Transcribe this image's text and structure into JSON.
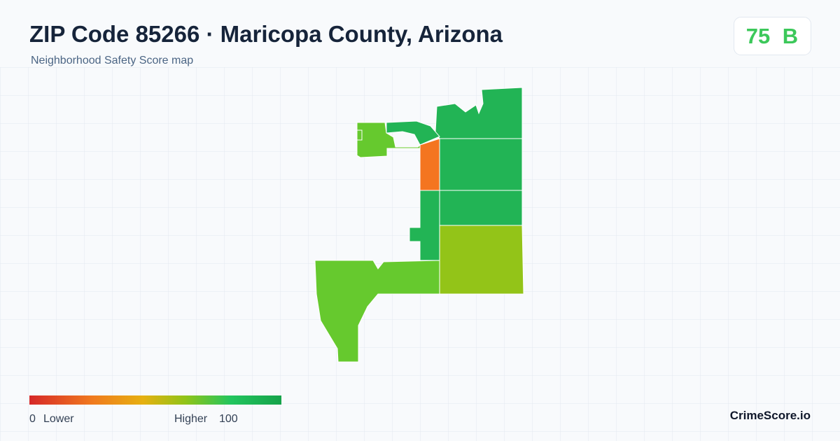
{
  "header": {
    "title": "ZIP Code 85266 · Maricopa County, Arizona",
    "subtitle": "Neighborhood Safety Score map"
  },
  "score": {
    "value": "75",
    "grade": "B"
  },
  "legend": {
    "min": "0",
    "min_label": "Lower",
    "max_label": "Higher",
    "max": "100"
  },
  "brand": "CrimeScore.io"
}
